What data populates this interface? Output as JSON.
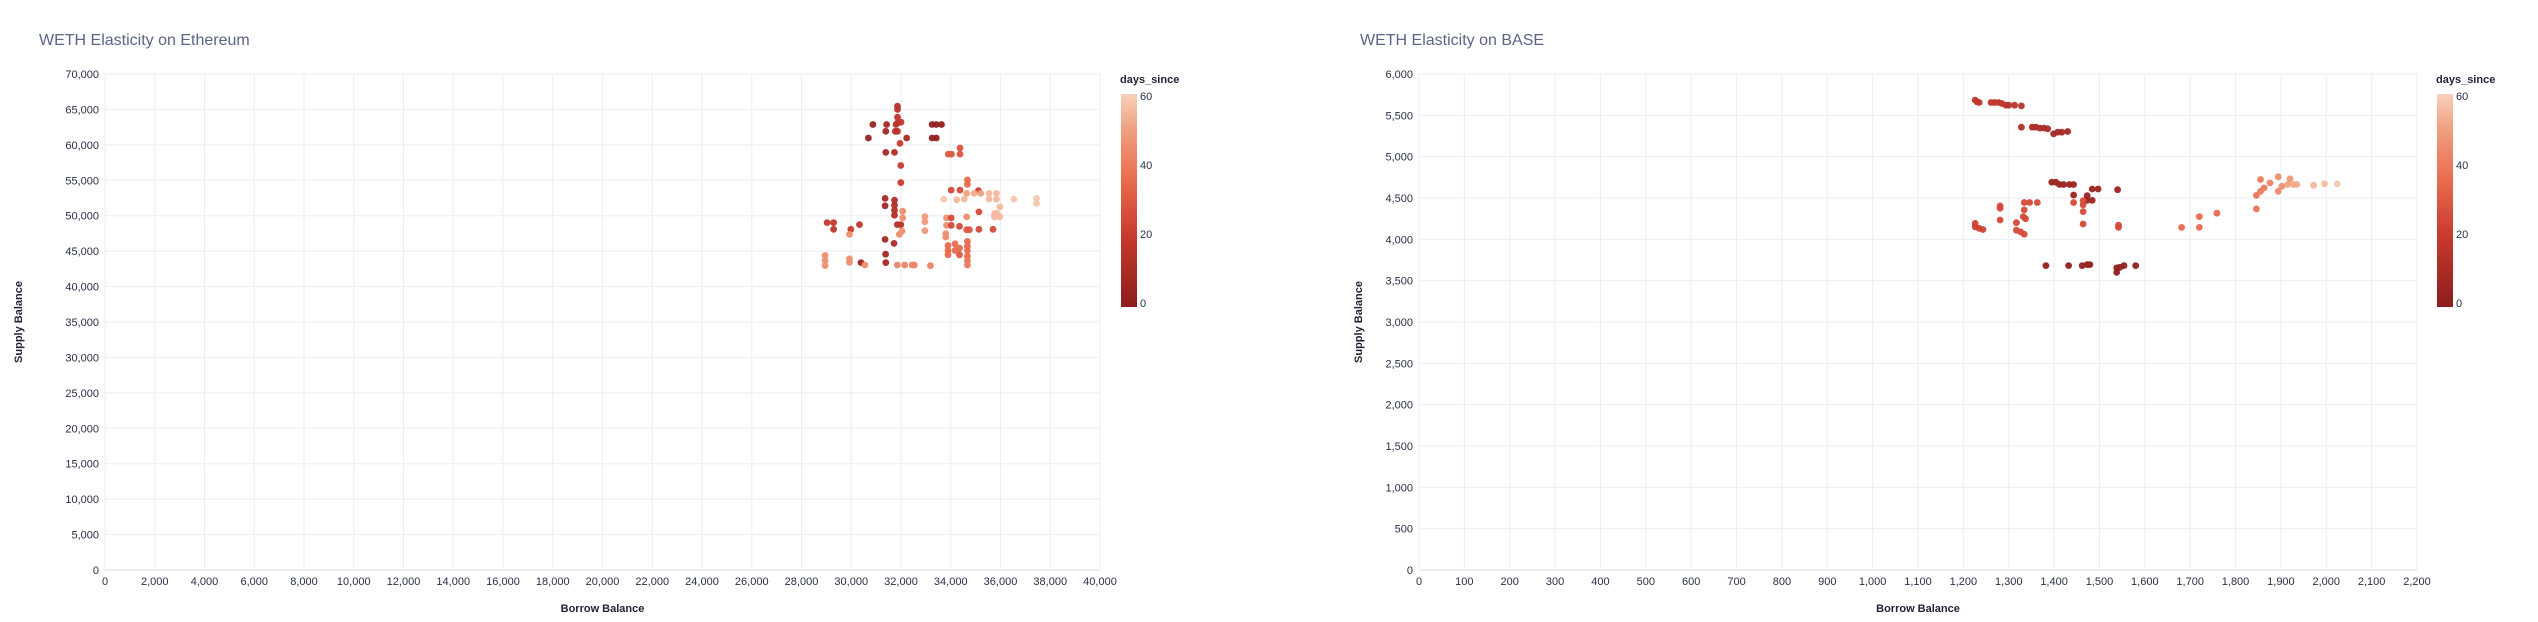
{
  "colorscale": {
    "stops": [
      [
        0,
        "#8c1d1d"
      ],
      [
        20,
        "#c83a2e"
      ],
      [
        35,
        "#e8694b"
      ],
      [
        50,
        "#f0a080"
      ],
      [
        60,
        "#f8d0bb"
      ]
    ],
    "grid_color": "#eceef4"
  },
  "chart_data": [
    {
      "type": "scatter",
      "title": "WETH Elasticity on Ethereum",
      "xlabel": "Borrow Balance",
      "ylabel": "Supply Balance",
      "xlim": [
        0,
        40000
      ],
      "ylim": [
        0,
        70000
      ],
      "xticks": [
        "0",
        "2,000",
        "4,000",
        "6,000",
        "8,000",
        "10,000",
        "12,000",
        "14,000",
        "16,000",
        "18,000",
        "20,000",
        "22,000",
        "24,000",
        "26,000",
        "28,000",
        "30,000",
        "32,000",
        "34,000",
        "36,000",
        "38,000",
        "40,000"
      ],
      "xtick_values": [
        0,
        2000,
        4000,
        6000,
        8000,
        10000,
        12000,
        14000,
        16000,
        18000,
        20000,
        22000,
        24000,
        26000,
        28000,
        30000,
        32000,
        34000,
        36000,
        38000,
        40000
      ],
      "yticks": [
        "0",
        "5,000",
        "10,000",
        "15,000",
        "20,000",
        "25,000",
        "30,000",
        "35,000",
        "40,000",
        "45,000",
        "50,000",
        "55,000",
        "60,000",
        "65,000",
        "70,000"
      ],
      "ytick_values": [
        0,
        5000,
        10000,
        15000,
        20000,
        25000,
        30000,
        35000,
        40000,
        45000,
        50000,
        55000,
        60000,
        65000,
        70000
      ],
      "grid": true,
      "color_legend": {
        "title": "days_since",
        "ticks": [
          "0",
          "20",
          "40",
          "60"
        ],
        "tick_values": [
          0,
          20,
          40,
          60
        ],
        "range": [
          0,
          60
        ],
        "placement": "right"
      },
      "points": [
        [
          31860,
          65470,
          15
        ],
        [
          31860,
          65000,
          15
        ],
        [
          31860,
          63910,
          18
        ],
        [
          31860,
          63100,
          18
        ],
        [
          32000,
          63200,
          18
        ],
        [
          31800,
          62870,
          15
        ],
        [
          30870,
          62870,
          5
        ],
        [
          31420,
          62870,
          8
        ],
        [
          31390,
          61920,
          8
        ],
        [
          31770,
          61920,
          15
        ],
        [
          31860,
          61920,
          15
        ],
        [
          30690,
          60970,
          3
        ],
        [
          32230,
          60970,
          8
        ],
        [
          31960,
          60210,
          20
        ],
        [
          31390,
          58930,
          8
        ],
        [
          31740,
          58930,
          12
        ],
        [
          31990,
          57080,
          20
        ],
        [
          31990,
          54670,
          20
        ],
        [
          33250,
          62870,
          2
        ],
        [
          33420,
          62870,
          2
        ],
        [
          33630,
          62870,
          2
        ],
        [
          33250,
          60970,
          2
        ],
        [
          33420,
          60970,
          2
        ],
        [
          33900,
          58700,
          30
        ],
        [
          34030,
          58700,
          30
        ],
        [
          34370,
          59550,
          28
        ],
        [
          34370,
          58700,
          28
        ],
        [
          31360,
          52440,
          8
        ],
        [
          31360,
          51400,
          8
        ],
        [
          31740,
          52200,
          12
        ],
        [
          31740,
          51490,
          12
        ],
        [
          31740,
          50780,
          12
        ],
        [
          31740,
          50070,
          12
        ],
        [
          31850,
          48740,
          15
        ],
        [
          31990,
          48740,
          15
        ],
        [
          31360,
          46660,
          8
        ],
        [
          31720,
          46090,
          10
        ],
        [
          31380,
          44570,
          8
        ],
        [
          31390,
          43390,
          8
        ],
        [
          30390,
          43390,
          5
        ],
        [
          29030,
          49030,
          18
        ],
        [
          29290,
          49030,
          18
        ],
        [
          29290,
          48080,
          18
        ],
        [
          29980,
          48080,
          20
        ],
        [
          30330,
          48740,
          18
        ],
        [
          28950,
          44380,
          45
        ],
        [
          28950,
          43670,
          45
        ],
        [
          28950,
          42960,
          45
        ],
        [
          29930,
          43910,
          45
        ],
        [
          29930,
          43430,
          45
        ],
        [
          29930,
          47360,
          45
        ],
        [
          30550,
          43050,
          45
        ],
        [
          32070,
          50640,
          45
        ],
        [
          32070,
          49690,
          45
        ],
        [
          32040,
          47840,
          45
        ],
        [
          31930,
          47360,
          45
        ],
        [
          31850,
          43050,
          42
        ],
        [
          32150,
          43050,
          42
        ],
        [
          32450,
          43050,
          42
        ],
        [
          32540,
          43050,
          42
        ],
        [
          33180,
          42960,
          42
        ],
        [
          32960,
          49880,
          48
        ],
        [
          32960,
          49120,
          48
        ],
        [
          32960,
          47890,
          48
        ],
        [
          33720,
          52340,
          58
        ],
        [
          34240,
          52250,
          55
        ],
        [
          34540,
          52340,
          55
        ],
        [
          34640,
          53150,
          50
        ],
        [
          34670,
          55050,
          35
        ],
        [
          34670,
          54430,
          35
        ],
        [
          34020,
          53620,
          25
        ],
        [
          34370,
          53620,
          25
        ],
        [
          35110,
          53530,
          22
        ],
        [
          35210,
          53150,
          50
        ],
        [
          34940,
          53150,
          52
        ],
        [
          35540,
          53150,
          55
        ],
        [
          35840,
          53150,
          55
        ],
        [
          35540,
          52340,
          55
        ],
        [
          35840,
          52340,
          55
        ],
        [
          36540,
          52340,
          58
        ],
        [
          37450,
          52440,
          58
        ],
        [
          37450,
          51730,
          58
        ],
        [
          35760,
          50310,
          55
        ],
        [
          35970,
          51250,
          55
        ],
        [
          35970,
          49830,
          55
        ],
        [
          35760,
          49830,
          55
        ],
        [
          35870,
          50310,
          55
        ],
        [
          33830,
          49690,
          45
        ],
        [
          34020,
          49690,
          25
        ],
        [
          33830,
          48650,
          45
        ],
        [
          34020,
          48650,
          25
        ],
        [
          34350,
          48510,
          25
        ],
        [
          34640,
          49830,
          45
        ],
        [
          34640,
          48030,
          30
        ],
        [
          34750,
          48030,
          30
        ],
        [
          35130,
          50540,
          25
        ],
        [
          35130,
          48080,
          25
        ],
        [
          35700,
          48080,
          25
        ],
        [
          33800,
          47460,
          45
        ],
        [
          33800,
          46990,
          45
        ],
        [
          33890,
          45800,
          35
        ],
        [
          33890,
          45090,
          35
        ],
        [
          33890,
          44480,
          35
        ],
        [
          34170,
          46040,
          35
        ],
        [
          34170,
          45090,
          35
        ],
        [
          34350,
          45420,
          35
        ],
        [
          34350,
          44480,
          30
        ],
        [
          34670,
          46370,
          35
        ],
        [
          34670,
          45710,
          35
        ],
        [
          34670,
          45090,
          35
        ],
        [
          34670,
          44290,
          35
        ],
        [
          34670,
          43050,
          40
        ],
        [
          34670,
          43670,
          40
        ]
      ]
    },
    {
      "type": "scatter",
      "title": "WETH Elasticity on BASE",
      "xlabel": "Borrow Balance",
      "ylabel": "Supply Balance",
      "xlim": [
        0,
        2200
      ],
      "ylim": [
        0,
        6000
      ],
      "xticks": [
        "0",
        "100",
        "200",
        "300",
        "400",
        "500",
        "600",
        "700",
        "800",
        "900",
        "1,000",
        "1,100",
        "1,200",
        "1,300",
        "1,400",
        "1,500",
        "1,600",
        "1,700",
        "1,800",
        "1,900",
        "2,000",
        "2,100",
        "2,200"
      ],
      "xtick_values": [
        0,
        100,
        200,
        300,
        400,
        500,
        600,
        700,
        800,
        900,
        1000,
        1100,
        1200,
        1300,
        1400,
        1500,
        1600,
        1700,
        1800,
        1900,
        2000,
        2100,
        2200
      ],
      "yticks": [
        "0",
        "500",
        "1,000",
        "1,500",
        "2,000",
        "2,500",
        "3,000",
        "3,500",
        "4,000",
        "4,500",
        "5,000",
        "5,500",
        "6,000"
      ],
      "ytick_values": [
        0,
        500,
        1000,
        1500,
        2000,
        2500,
        3000,
        3500,
        4000,
        4500,
        5000,
        5500,
        6000
      ],
      "grid": true,
      "color_legend": {
        "title": "days_since",
        "ticks": [
          "0",
          "20",
          "40",
          "60"
        ],
        "tick_values": [
          0,
          20,
          40,
          60
        ],
        "range": [
          0,
          60
        ],
        "placement": "right"
      },
      "points": [
        [
          1226,
          5684,
          18
        ],
        [
          1230,
          5663,
          18
        ],
        [
          1235,
          5655,
          18
        ],
        [
          1261,
          5655,
          17
        ],
        [
          1269,
          5655,
          17
        ],
        [
          1278,
          5655,
          17
        ],
        [
          1285,
          5643,
          17
        ],
        [
          1294,
          5623,
          16
        ],
        [
          1300,
          5623,
          16
        ],
        [
          1313,
          5623,
          16
        ],
        [
          1328,
          5614,
          16
        ],
        [
          1328,
          5357,
          12
        ],
        [
          1352,
          5357,
          10
        ],
        [
          1360,
          5357,
          10
        ],
        [
          1369,
          5345,
          10
        ],
        [
          1378,
          5345,
          10
        ],
        [
          1386,
          5337,
          10
        ],
        [
          1399,
          5275,
          8
        ],
        [
          1408,
          5296,
          8
        ],
        [
          1417,
          5296,
          8
        ],
        [
          1430,
          5304,
          8
        ],
        [
          1395,
          4691,
          5
        ],
        [
          1404,
          4691,
          5
        ],
        [
          1412,
          4663,
          5
        ],
        [
          1421,
          4663,
          5
        ],
        [
          1434,
          4663,
          5
        ],
        [
          1443,
          4663,
          5
        ],
        [
          1443,
          4536,
          5
        ],
        [
          1484,
          4609,
          5
        ],
        [
          1497,
          4609,
          5
        ],
        [
          1540,
          4601,
          5
        ],
        [
          1473,
          4528,
          5
        ],
        [
          1473,
          4471,
          5
        ],
        [
          1484,
          4471,
          5
        ],
        [
          1443,
          4446,
          25
        ],
        [
          1464,
          4467,
          25
        ],
        [
          1464,
          4417,
          25
        ],
        [
          1464,
          4336,
          25
        ],
        [
          1464,
          4185,
          25
        ],
        [
          1542,
          4172,
          25
        ],
        [
          1542,
          4144,
          25
        ],
        [
          1281,
          4405,
          25
        ],
        [
          1281,
          4377,
          25
        ],
        [
          1281,
          4234,
          25
        ],
        [
          1334,
          4446,
          25
        ],
        [
          1346,
          4446,
          25
        ],
        [
          1363,
          4446,
          25
        ],
        [
          1334,
          4356,
          25
        ],
        [
          1332,
          4275,
          25
        ],
        [
          1337,
          4250,
          25
        ],
        [
          1317,
          4201,
          25
        ],
        [
          1317,
          4111,
          25
        ],
        [
          1326,
          4091,
          25
        ],
        [
          1334,
          4062,
          25
        ],
        [
          1226,
          4193,
          22
        ],
        [
          1226,
          4152,
          22
        ],
        [
          1235,
          4132,
          22
        ],
        [
          1243,
          4119,
          22
        ],
        [
          1382,
          3682,
          2
        ],
        [
          1432,
          3682,
          2
        ],
        [
          1462,
          3682,
          2
        ],
        [
          1473,
          3694,
          2
        ],
        [
          1479,
          3694,
          2
        ],
        [
          1538,
          3654,
          2
        ],
        [
          1538,
          3600,
          2
        ],
        [
          1545,
          3662,
          2
        ],
        [
          1554,
          3682,
          2
        ],
        [
          1580,
          3682,
          2
        ],
        [
          1681,
          4144,
          35
        ],
        [
          1720,
          4275,
          35
        ],
        [
          1720,
          4144,
          35
        ],
        [
          1759,
          4316,
          35
        ],
        [
          1846,
          4368,
          38
        ],
        [
          1846,
          4532,
          38
        ],
        [
          1855,
          4581,
          40
        ],
        [
          1855,
          4724,
          40
        ],
        [
          1863,
          4622,
          40
        ],
        [
          1876,
          4683,
          42
        ],
        [
          1894,
          4757,
          45
        ],
        [
          1894,
          4581,
          45
        ],
        [
          1902,
          4642,
          45
        ],
        [
          1915,
          4663,
          50
        ],
        [
          1920,
          4732,
          48
        ],
        [
          1928,
          4663,
          52
        ],
        [
          1935,
          4663,
          52
        ],
        [
          1972,
          4654,
          55
        ],
        [
          1996,
          4671,
          56
        ],
        [
          2024,
          4671,
          58
        ]
      ]
    }
  ]
}
